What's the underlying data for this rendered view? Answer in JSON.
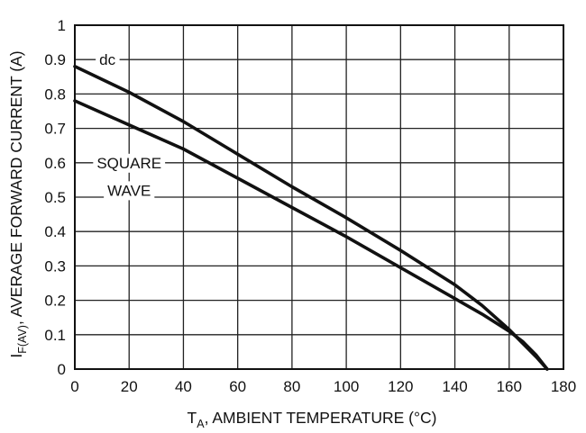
{
  "chart_data": {
    "type": "line",
    "xlim": [
      0,
      180
    ],
    "ylim": [
      0,
      1
    ],
    "x_ticks": [
      0,
      20,
      40,
      60,
      80,
      100,
      120,
      140,
      160,
      180
    ],
    "y_ticks": [
      0,
      0.1,
      0.2,
      0.3,
      0.4,
      0.5,
      0.6,
      0.7,
      0.8,
      0.9,
      1
    ],
    "x_tick_labels": [
      "0",
      "20",
      "40",
      "60",
      "80",
      "100",
      "120",
      "140",
      "160",
      "180"
    ],
    "y_tick_labels": [
      "0",
      "0.1",
      "0.2",
      "0.3",
      "0.4",
      "0.5",
      "0.6",
      "0.7",
      "0.8",
      "0.9",
      "1"
    ],
    "grid": true,
    "xlabel": {
      "main": "T",
      "sub": "A",
      "rest": ", AMBIENT TEMPERATURE (°C)"
    },
    "ylabel": {
      "main": "I",
      "sub": "F(AV)",
      "rest": ", AVERAGE FORWARD CURRENT (A)"
    },
    "series": [
      {
        "name": "dc",
        "x": [
          0,
          20,
          40,
          60,
          80,
          100,
          120,
          140,
          150,
          160,
          165,
          170,
          174
        ],
        "y": [
          0.88,
          0.805,
          0.72,
          0.625,
          0.53,
          0.44,
          0.345,
          0.245,
          0.185,
          0.115,
          0.075,
          0.035,
          0
        ]
      },
      {
        "name": "SQUARE WAVE",
        "x": [
          0,
          20,
          40,
          60,
          80,
          100,
          120,
          140,
          150,
          160,
          165,
          170,
          174
        ],
        "y": [
          0.78,
          0.71,
          0.64,
          0.555,
          0.47,
          0.385,
          0.295,
          0.205,
          0.16,
          0.11,
          0.08,
          0.04,
          0
        ]
      }
    ],
    "annotations": [
      {
        "text": "dc",
        "x": 12,
        "y": 0.9
      },
      {
        "text": "SQUARE",
        "x": 20,
        "y": 0.6
      },
      {
        "text": "WAVE",
        "x": 20,
        "y": 0.52
      }
    ]
  }
}
